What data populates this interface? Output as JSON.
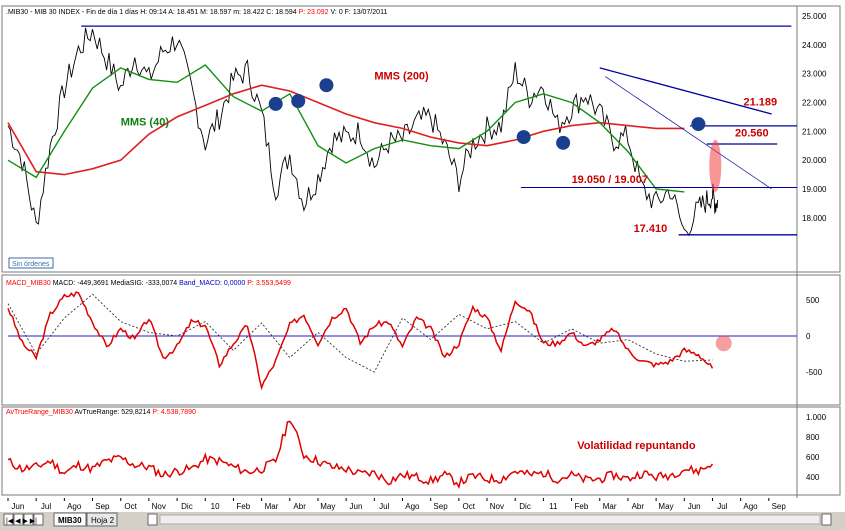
{
  "headers": {
    "price_main": ".MIB30 - MIB 30 INDEX - Fin de día 1 días  H: 09:14  A: 18.451  M: 18.597  m: 18.422  C: 18.594  ",
    "price_p": "P: 23.092",
    "price_tail": "  V: 0  F: 13/07/2011",
    "macd_1": "MACD_MIB30 ",
    "macd_2": "MACD: -449,3691  MediaSIG: -333,0074  ",
    "macd_3": "Band_MACD: 0,0000  ",
    "macd_4": "P: 3.553,5499",
    "atr_1": "AvTrueRange_MIB30 ",
    "atr_2": "AvTrueRange: 529,8214  ",
    "atr_3": "P: 4.538,7890"
  },
  "orders_label": "Sin órdenes",
  "tabs": [
    "MIB30",
    "Hoja 2"
  ],
  "colors": {
    "price": "#000000",
    "sma200": "#e02020",
    "sma40": "#109010",
    "trend": "#0000a0",
    "macd": "#e00000",
    "signal": "#333333",
    "atr": "#e00000",
    "circle": "#1a3f8f"
  },
  "chart_data": [
    {
      "type": "line",
      "panel": "price",
      "title": "MIB 30 INDEX",
      "x_axis_labels": [
        "Jun",
        "Jul",
        "Ago",
        "Sep",
        "Oct",
        "Nov",
        "Dic",
        "10",
        "Feb",
        "Mar",
        "Abr",
        "May",
        "Jun",
        "Jul",
        "Ago",
        "Sep",
        "Oct",
        "Nov",
        "Dic",
        "11",
        "Feb",
        "Mar",
        "Abr",
        "May",
        "Jun",
        "Jul",
        "Ago",
        "Sep"
      ],
      "ylim": [
        17000,
        25000
      ],
      "y_ticks": [
        "18.000",
        "19.000",
        "20.000",
        "21.000",
        "22.000",
        "23.000",
        "24.000",
        "25.000"
      ],
      "series": [
        {
          "name": "price",
          "x": [
            0,
            0.5,
            1,
            1.5,
            2,
            2.5,
            3,
            3.5,
            4,
            4.5,
            5,
            5.5,
            6,
            6.5,
            7,
            7.5,
            8,
            8.5,
            9,
            9.5,
            10,
            10.5,
            11,
            11.5,
            12,
            12.5,
            13,
            13.5,
            14,
            14.5,
            15,
            15.5,
            16,
            16.5,
            17,
            17.5,
            18,
            18.5,
            19,
            19.5,
            20,
            20.5,
            21,
            21.5,
            22,
            22.5,
            23,
            23.5,
            24,
            24.5,
            24.8,
            25,
            25.1,
            25.2
          ],
          "values": [
            21200,
            20000,
            17700,
            20500,
            22500,
            23800,
            24500,
            23500,
            22500,
            23600,
            22800,
            23800,
            24200,
            22500,
            20600,
            21500,
            22800,
            23100,
            21600,
            19000,
            20200,
            18500,
            19400,
            20700,
            20800,
            21000,
            19800,
            20600,
            20700,
            21300,
            21500,
            20500,
            19300,
            20600,
            21100,
            21200,
            23100,
            22200,
            22600,
            21200,
            21800,
            22300,
            21600,
            20700,
            20800,
            19000,
            18500,
            19000,
            17500,
            18300,
            18600,
            18800,
            18500,
            18600
          ]
        },
        {
          "name": "MMS (40)",
          "x": [
            0,
            1,
            2,
            3,
            4,
            5,
            6,
            7,
            8,
            9,
            10,
            11,
            12,
            13,
            14,
            15,
            16,
            17,
            18,
            19,
            20,
            21,
            22,
            23,
            24
          ],
          "values": [
            20000,
            19400,
            21000,
            22500,
            23200,
            22800,
            22700,
            23300,
            22200,
            21700,
            22300,
            20500,
            19900,
            20400,
            20700,
            20500,
            20400,
            21000,
            22000,
            22300,
            22000,
            21300,
            20300,
            19000,
            18900
          ]
        },
        {
          "name": "MMS (200)",
          "x": [
            0,
            1,
            2,
            3,
            4,
            5,
            6,
            7,
            8,
            9,
            10,
            11,
            12,
            13,
            14,
            15,
            16,
            17,
            18,
            19,
            20,
            21,
            22,
            23,
            24
          ],
          "values": [
            21300,
            19600,
            19500,
            19700,
            20000,
            20900,
            21500,
            21900,
            22300,
            22600,
            22400,
            22000,
            21600,
            21300,
            21100,
            20800,
            20600,
            20500,
            20700,
            21000,
            21200,
            21300,
            21200,
            21100,
            21100
          ]
        }
      ],
      "annotations": [
        "MMS (200)",
        "MMS (40)",
        "21.189",
        "20.560",
        "19.050 / 19.007",
        "17.410"
      ],
      "levels": [
        21189,
        20560,
        19050,
        17410
      ]
    },
    {
      "type": "line",
      "panel": "MACD",
      "ylim": [
        -800,
        800
      ],
      "y_ticks": [
        "500",
        "0",
        "-500"
      ],
      "series": [
        {
          "name": "MACD",
          "x": [
            0,
            0.5,
            1,
            1.5,
            2,
            2.5,
            3,
            3.5,
            4,
            4.5,
            5,
            5.5,
            6,
            6.5,
            7,
            7.5,
            8,
            8.5,
            9,
            9.5,
            10,
            10.5,
            11,
            11.5,
            12,
            12.5,
            13,
            13.5,
            14,
            14.5,
            15,
            15.5,
            16,
            16.5,
            17,
            17.5,
            18,
            18.5,
            19,
            19.5,
            20,
            20.5,
            21,
            21.5,
            22,
            22.5,
            23,
            23.5,
            24,
            24.5,
            25
          ],
          "values": [
            400,
            -100,
            -300,
            300,
            550,
            600,
            200,
            -150,
            100,
            -50,
            250,
            -300,
            -150,
            200,
            150,
            -400,
            -100,
            150,
            -700,
            -350,
            150,
            300,
            -100,
            250,
            400,
            -100,
            150,
            200,
            -150,
            250,
            100,
            -300,
            -100,
            400,
            250,
            -200,
            500,
            350,
            -100,
            -100,
            50,
            -150,
            -50,
            100,
            -200,
            -350,
            -400,
            -350,
            -200,
            -250,
            -450
          ]
        },
        {
          "name": "MediaSIG",
          "x": [
            0,
            1,
            2,
            3,
            4,
            5,
            6,
            7,
            8,
            9,
            10,
            11,
            12,
            13,
            14,
            15,
            16,
            17,
            18,
            19,
            20,
            21,
            22,
            23,
            24,
            25
          ],
          "values": [
            450,
            -250,
            250,
            580,
            200,
            50,
            0,
            200,
            -200,
            180,
            -300,
            50,
            -300,
            -500,
            250,
            -50,
            300,
            100,
            200,
            -100,
            100,
            -100,
            -50,
            -250,
            -350,
            -333
          ]
        }
      ]
    },
    {
      "type": "line",
      "panel": "ATR",
      "ylim": [
        200,
        1000
      ],
      "y_ticks": [
        "400",
        "600",
        "800",
        "1.000"
      ],
      "annotations": [
        "Volatilidad repuntando"
      ],
      "series": [
        {
          "name": "AvTrueRange",
          "x": [
            0,
            0.5,
            1,
            1.5,
            2,
            2.5,
            3,
            3.5,
            4,
            4.5,
            5,
            5.5,
            6,
            6.5,
            7,
            7.5,
            8,
            8.5,
            9,
            9.5,
            10,
            10.5,
            11,
            11.5,
            12,
            12.5,
            13,
            13.5,
            14,
            14.5,
            15,
            15.5,
            16,
            16.5,
            17,
            17.5,
            18,
            18.5,
            19,
            19.5,
            20,
            20.5,
            21,
            21.5,
            22,
            22.5,
            23,
            23.5,
            24,
            24.5,
            25
          ],
          "values": [
            560,
            480,
            500,
            560,
            440,
            520,
            480,
            560,
            590,
            520,
            500,
            420,
            460,
            480,
            580,
            560,
            500,
            450,
            480,
            560,
            1000,
            620,
            560,
            500,
            480,
            430,
            440,
            360,
            420,
            400,
            360,
            420,
            340,
            410,
            380,
            380,
            460,
            420,
            440,
            380,
            420,
            370,
            380,
            420,
            380,
            440,
            400,
            420,
            480,
            460,
            530
          ]
        }
      ]
    }
  ]
}
